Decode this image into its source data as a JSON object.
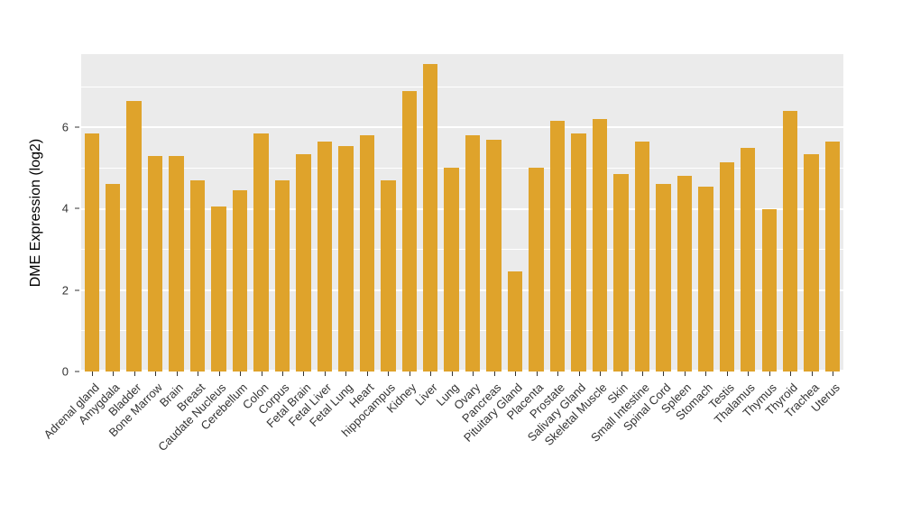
{
  "chart_data": {
    "type": "bar",
    "title": "",
    "xlabel": "",
    "ylabel": "DME Expression (log2)",
    "categories": [
      "Adrenal gland",
      "Amygdala",
      "Bladder",
      "Bone Marrow",
      "Brain",
      "Breast",
      "Caudate Nucleus",
      "Cerebellum",
      "Colon",
      "Corpus",
      "Fetal Brain",
      "Fetal Liver",
      "Fetal Lung",
      "Heart",
      "hippocampus",
      "Kidney",
      "Liver",
      "Lung",
      "Ovary",
      "Pancreas",
      "Pituitary Gland",
      "Placenta",
      "Prostate",
      "Salivary Gland",
      "Skeletal Muscle",
      "Skin",
      "Small Intestine",
      "Spinal Cord",
      "Spleen",
      "Stomach",
      "Testis",
      "Thalamus",
      "Thymus",
      "Thyroid",
      "Trachea",
      "Uterus"
    ],
    "values": [
      5.85,
      4.6,
      6.65,
      5.3,
      5.3,
      4.7,
      4.05,
      4.45,
      5.85,
      4.7,
      5.35,
      5.65,
      5.55,
      5.8,
      4.7,
      6.9,
      7.55,
      5.0,
      5.8,
      5.7,
      2.45,
      5.0,
      6.15,
      5.85,
      6.2,
      4.85,
      5.65,
      4.6,
      4.8,
      4.55,
      5.15,
      5.5,
      4.0,
      6.4,
      5.35,
      5.65
    ],
    "ylim": [
      0,
      7.8
    ],
    "yticks": [
      0,
      2,
      4,
      6
    ],
    "minor_ticks": [
      1,
      3,
      5,
      7
    ],
    "bar_color": "#DFA32B",
    "panel_bg": "#EBEBEB",
    "grid_color": "#FFFFFF",
    "axis_text_color": "#333333",
    "grid": "on",
    "legend_position": "none"
  }
}
